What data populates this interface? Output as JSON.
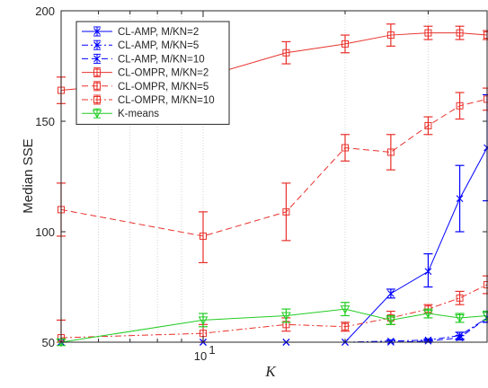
{
  "chart_data": {
    "type": "line",
    "xlabel": "K",
    "ylabel": "Median SSE",
    "x_scale": "log",
    "xlim": [
      5,
      40
    ],
    "ylim": [
      50,
      200
    ],
    "yticks": [
      50,
      100,
      150,
      200
    ],
    "xtick_labels": [
      {
        "base": "10",
        "exp": "1"
      }
    ],
    "grid": "x-minor-dotted",
    "legend_position": "top-left",
    "x": [
      5,
      10,
      15,
      20,
      25,
      30,
      35,
      40
    ],
    "series": [
      {
        "name": "CL-AMP, M/KN=2",
        "color": "#0000ff",
        "dash": "solid",
        "marker": "x",
        "values": [
          50,
          50,
          50,
          50,
          72,
          82,
          115,
          138
        ],
        "err_lo": [
          0,
          0,
          0,
          0,
          2,
          7,
          15,
          24
        ],
        "err_hi": [
          0,
          0,
          0,
          0,
          2,
          8,
          15,
          24
        ]
      },
      {
        "name": "CL-AMP, M/KN=5",
        "color": "#0000ff",
        "dash": "dashdot",
        "marker": "x",
        "values": [
          50,
          50,
          50,
          50,
          50.5,
          51,
          53,
          61
        ],
        "err_lo": [
          0,
          0,
          0,
          0,
          0.5,
          0.5,
          1.5,
          2
        ],
        "err_hi": [
          0,
          0,
          0,
          0,
          0.5,
          0.5,
          1.5,
          3
        ]
      },
      {
        "name": "CL-AMP, M/KN=10",
        "color": "#0000ff",
        "dash": "dashed",
        "marker": "x",
        "values": [
          50,
          50,
          50,
          50,
          50,
          50.5,
          52,
          61
        ],
        "err_lo": [
          0,
          0,
          0,
          0,
          0,
          0.5,
          1,
          2
        ],
        "err_hi": [
          0,
          0,
          0,
          0,
          0,
          0.5,
          1,
          3
        ]
      },
      {
        "name": "CL-OMPR, M/KN=2",
        "color": "#e8302a",
        "dash": "solid",
        "marker": "square",
        "values": [
          164,
          170,
          181,
          185,
          189,
          190,
          190,
          189
        ],
        "err_lo": [
          6,
          7,
          5,
          4,
          5,
          3,
          3,
          2
        ],
        "err_hi": [
          6,
          7,
          5,
          4,
          5,
          3,
          3,
          2
        ]
      },
      {
        "name": "CL-OMPR, M/KN=5",
        "color": "#e8302a",
        "dash": "dashed",
        "marker": "square",
        "values": [
          110,
          98,
          109,
          138,
          136,
          148,
          157,
          160
        ],
        "err_lo": [
          12,
          12,
          13,
          6,
          8,
          4,
          6,
          5
        ],
        "err_hi": [
          12,
          11,
          13,
          6,
          8,
          4,
          6,
          5
        ]
      },
      {
        "name": "CL-OMPR, M/KN=10",
        "color": "#e8302a",
        "dash": "dashdot",
        "marker": "square",
        "values": [
          52,
          54,
          58,
          57,
          61,
          65,
          70,
          76
        ],
        "err_lo": [
          2,
          4,
          3,
          2,
          3,
          2,
          3,
          4
        ],
        "err_hi": [
          8,
          4,
          3,
          2,
          3,
          2,
          3,
          4
        ]
      },
      {
        "name": "K-means",
        "color": "#22cc22",
        "dash": "solid",
        "marker": "triangle-down",
        "values": [
          50,
          60,
          62,
          65,
          60,
          63,
          61,
          62
        ],
        "err_lo": [
          1.5,
          3,
          3,
          3,
          2,
          2,
          2,
          2
        ],
        "err_hi": [
          1.5,
          3,
          3,
          3,
          2,
          2,
          2,
          2
        ]
      }
    ]
  }
}
